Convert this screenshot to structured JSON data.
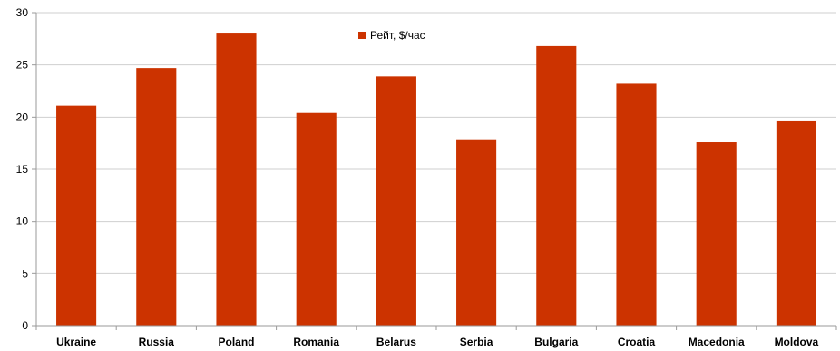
{
  "chart_data": {
    "type": "bar",
    "categories": [
      "Ukraine",
      "Russia",
      "Poland",
      "Romania",
      "Belarus",
      "Serbia",
      "Bulgaria",
      "Croatia",
      "Macedonia",
      "Moldova"
    ],
    "series": [
      {
        "name": "Рейт, $/час",
        "color": "#cc3300",
        "values": [
          21.1,
          24.7,
          28.0,
          20.4,
          23.9,
          17.8,
          26.8,
          23.2,
          17.6,
          19.6
        ]
      }
    ],
    "title": "",
    "xlabel": "",
    "ylabel": "",
    "ylim": [
      0,
      30
    ],
    "yticks": [
      0,
      5,
      10,
      15,
      20,
      25,
      30
    ],
    "grid": true,
    "legend_position": "top-center"
  }
}
